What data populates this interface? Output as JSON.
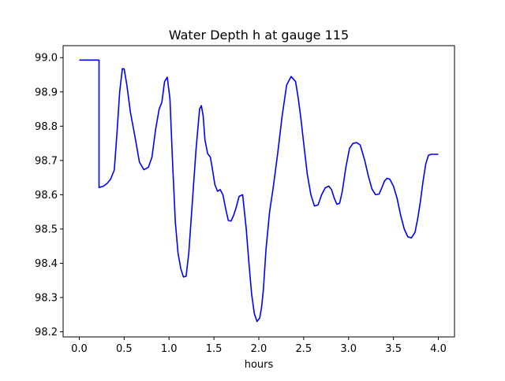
{
  "chart_data": {
    "type": "line",
    "title": "Water Depth h at gauge 115",
    "xlabel": "hours",
    "ylabel": "",
    "xlim": [
      -0.18,
      4.18
    ],
    "ylim": [
      98.185,
      99.035
    ],
    "xticks": [
      0.0,
      0.5,
      1.0,
      1.5,
      2.0,
      2.5,
      3.0,
      3.5,
      4.0
    ],
    "xtick_labels": [
      "0.0",
      "0.5",
      "1.0",
      "1.5",
      "2.0",
      "2.5",
      "3.0",
      "3.5",
      "4.0"
    ],
    "yticks": [
      98.2,
      98.3,
      98.4,
      98.5,
      98.6,
      98.7,
      98.8,
      98.9,
      99.0
    ],
    "ytick_labels": [
      "98.2",
      "98.3",
      "98.4",
      "98.5",
      "98.6",
      "98.7",
      "98.8",
      "98.9",
      "99.0"
    ],
    "grid": false,
    "colors": {
      "line": "#0000ff",
      "axes": "#000000",
      "background": "#ffffff"
    },
    "series": [
      {
        "x": [
          0.0,
          0.22,
          0.22,
          0.27,
          0.31,
          0.35,
          0.39,
          0.42,
          0.45,
          0.48,
          0.5,
          0.53,
          0.57,
          0.62,
          0.67,
          0.72,
          0.77,
          0.81,
          0.85,
          0.89,
          0.92,
          0.95,
          0.98,
          1.01,
          1.04,
          1.07,
          1.1,
          1.13,
          1.16,
          1.19,
          1.22,
          1.26,
          1.3,
          1.34,
          1.36,
          1.38,
          1.4,
          1.43,
          1.46,
          1.48,
          1.51,
          1.54,
          1.57,
          1.6,
          1.63,
          1.66,
          1.69,
          1.72,
          1.75,
          1.78,
          1.82,
          1.86,
          1.89,
          1.92,
          1.95,
          1.98,
          2.01,
          2.03,
          2.05,
          2.08,
          2.12,
          2.16,
          2.21,
          2.26,
          2.31,
          2.36,
          2.41,
          2.44,
          2.47,
          2.5,
          2.54,
          2.58,
          2.62,
          2.66,
          2.7,
          2.74,
          2.78,
          2.81,
          2.84,
          2.87,
          2.9,
          2.93,
          2.97,
          3.01,
          3.05,
          3.09,
          3.13,
          3.18,
          3.22,
          3.26,
          3.3,
          3.34,
          3.37,
          3.4,
          3.43,
          3.46,
          3.5,
          3.54,
          3.58,
          3.62,
          3.66,
          3.7,
          3.74,
          3.77,
          3.8,
          3.83,
          3.86,
          3.89,
          3.92,
          3.96,
          4.0
        ],
        "y": [
          98.993,
          98.993,
          98.621,
          98.625,
          98.633,
          98.646,
          98.672,
          98.78,
          98.9,
          98.968,
          98.967,
          98.92,
          98.84,
          98.77,
          98.695,
          98.673,
          98.68,
          98.71,
          98.79,
          98.85,
          98.87,
          98.93,
          98.943,
          98.88,
          98.69,
          98.52,
          98.43,
          98.385,
          98.36,
          98.362,
          98.43,
          98.58,
          98.73,
          98.85,
          98.86,
          98.83,
          98.76,
          98.72,
          98.71,
          98.68,
          98.63,
          98.61,
          98.615,
          98.6,
          98.56,
          98.525,
          98.523,
          98.54,
          98.565,
          98.595,
          98.6,
          98.5,
          98.4,
          98.31,
          98.253,
          98.23,
          98.24,
          98.27,
          98.32,
          98.44,
          98.55,
          98.62,
          98.72,
          98.83,
          98.92,
          98.945,
          98.93,
          98.88,
          98.82,
          98.75,
          98.66,
          98.6,
          98.567,
          98.57,
          98.6,
          98.62,
          98.625,
          98.615,
          98.59,
          98.572,
          98.575,
          98.61,
          98.68,
          98.735,
          98.75,
          98.752,
          98.745,
          98.7,
          98.655,
          98.617,
          98.6,
          98.602,
          98.62,
          98.64,
          98.648,
          98.645,
          98.625,
          98.59,
          98.54,
          98.5,
          98.477,
          98.474,
          98.49,
          98.53,
          98.58,
          98.64,
          98.69,
          98.715,
          98.718,
          98.718,
          98.718
        ]
      }
    ]
  }
}
